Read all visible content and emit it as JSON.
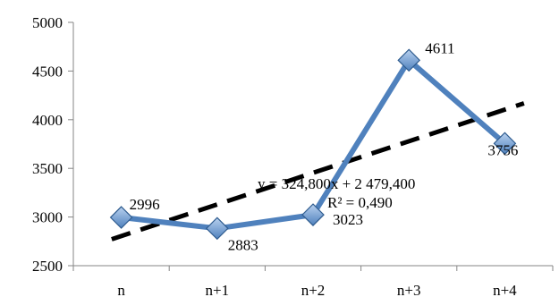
{
  "chart_data": {
    "type": "line",
    "categories": [
      "n",
      "n+1",
      "n+2",
      "n+3",
      "n+4"
    ],
    "series": [
      {
        "values": [
          2996,
          2883,
          3023,
          4611,
          3756
        ]
      }
    ],
    "data_labels": [
      "2996",
      "2883",
      "3023",
      "4611",
      "3756"
    ],
    "y_ticks": [
      "5000",
      "4500",
      "4000",
      "3500",
      "3000",
      "2500"
    ],
    "ylim": [
      2500,
      5000
    ],
    "trendline": {
      "type": "linear",
      "slope": 324.8,
      "intercept": 2479.4,
      "equation": "y = 324,800x + 2 479,400",
      "r_squared": "R² = 0,490"
    },
    "title": "",
    "xlabel": "",
    "ylabel": "",
    "grid": false,
    "legend": "none",
    "colors": {
      "series": "#4f81bd",
      "marker": "#4f81bd",
      "trendline": "#000000",
      "axis": "#868686"
    }
  }
}
